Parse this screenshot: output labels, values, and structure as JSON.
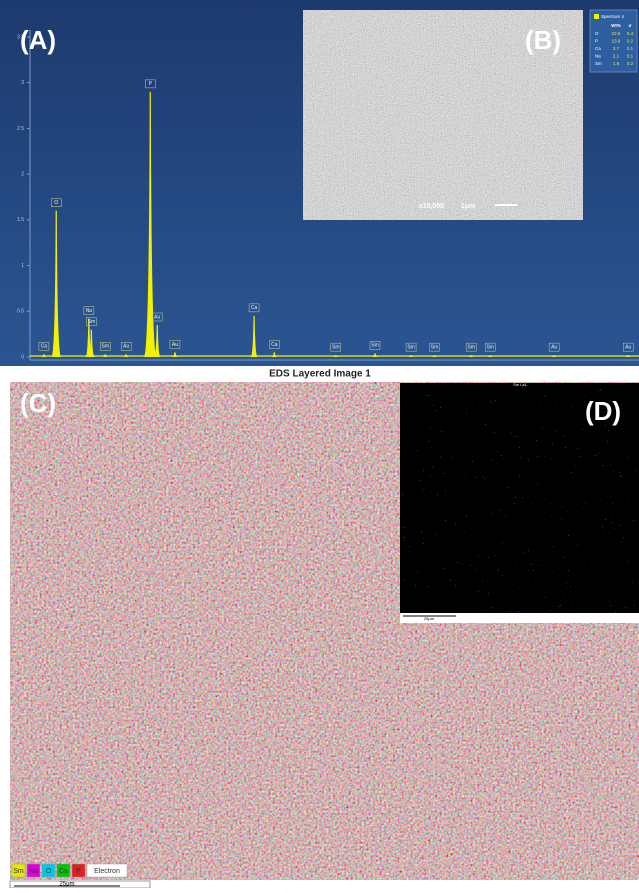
{
  "panels": {
    "a": "(A)",
    "b": "(B)",
    "c": "(C)",
    "d": "(D)"
  },
  "spectrum": {
    "ylim": [
      0,
      3.5
    ],
    "yticks": [
      0,
      0.5,
      1,
      1.5,
      2,
      2.5,
      3,
      3.5
    ],
    "xlim": [
      0,
      9.73
    ],
    "color": "#f2f200",
    "peaks": [
      {
        "label": "Ca",
        "x": 0.33,
        "height": 0.03
      },
      {
        "label": "O",
        "x": 0.525,
        "height": 1.6
      },
      {
        "label": "Na",
        "x": 1.04,
        "height": 0.42
      },
      {
        "label": "Sm",
        "x": 1.08,
        "height": 0.3
      },
      {
        "label": "Sm",
        "x": 1.3,
        "height": 0.03
      },
      {
        "label": "Au",
        "x": 1.63,
        "height": 0.03
      },
      {
        "label": "P",
        "x": 2.01,
        "height": 2.9
      },
      {
        "label": "Au",
        "x": 2.12,
        "height": 0.35
      },
      {
        "label": "Au",
        "x": 2.4,
        "height": 0.05
      },
      {
        "label": "Ca",
        "x": 3.65,
        "height": 0.45
      },
      {
        "label": "Ca",
        "x": 3.97,
        "height": 0.05
      },
      {
        "label": "Sm",
        "x": 4.94,
        "height": 0.02
      },
      {
        "label": "Sm",
        "x": 5.56,
        "height": 0.04
      },
      {
        "label": "Sm",
        "x": 6.13,
        "height": 0.02
      },
      {
        "label": "Sm",
        "x": 6.5,
        "height": 0.02
      },
      {
        "label": "Sm",
        "x": 7.08,
        "height": 0.02
      },
      {
        "label": "Sm",
        "x": 7.38,
        "height": 0.02
      },
      {
        "label": "Au",
        "x": 8.39,
        "height": 0.02
      },
      {
        "label": "Au",
        "x": 9.56,
        "height": 0.02
      }
    ]
  },
  "composition": {
    "title": "Spectrum 4",
    "header": [
      "Wt%",
      "σ"
    ],
    "rows": [
      [
        "O",
        "22.6",
        "0.4"
      ],
      [
        "P",
        "13.8",
        "0.2"
      ],
      [
        "Ca",
        "3.7",
        "0.1"
      ],
      [
        "Na",
        "2.1",
        "0.1"
      ],
      [
        "Sm",
        "1.9",
        "0.2"
      ]
    ]
  },
  "sem": {
    "magnification": "x10,000",
    "scale": "1μm"
  },
  "map": {
    "title": "EDS Layered Image 1",
    "scale": "25μm",
    "legend": [
      {
        "name": "Sm",
        "color": "#e8e800"
      },
      {
        "name": "Na",
        "color": "#e000e0"
      },
      {
        "name": "O",
        "color": "#00c8e8"
      },
      {
        "name": "Ca",
        "color": "#00c800"
      },
      {
        "name": "P",
        "color": "#e02020"
      },
      {
        "name": "Electron",
        "color": "#ffffff"
      }
    ]
  },
  "sm_map": {
    "title": "Sm La1",
    "scale": "25μm"
  }
}
